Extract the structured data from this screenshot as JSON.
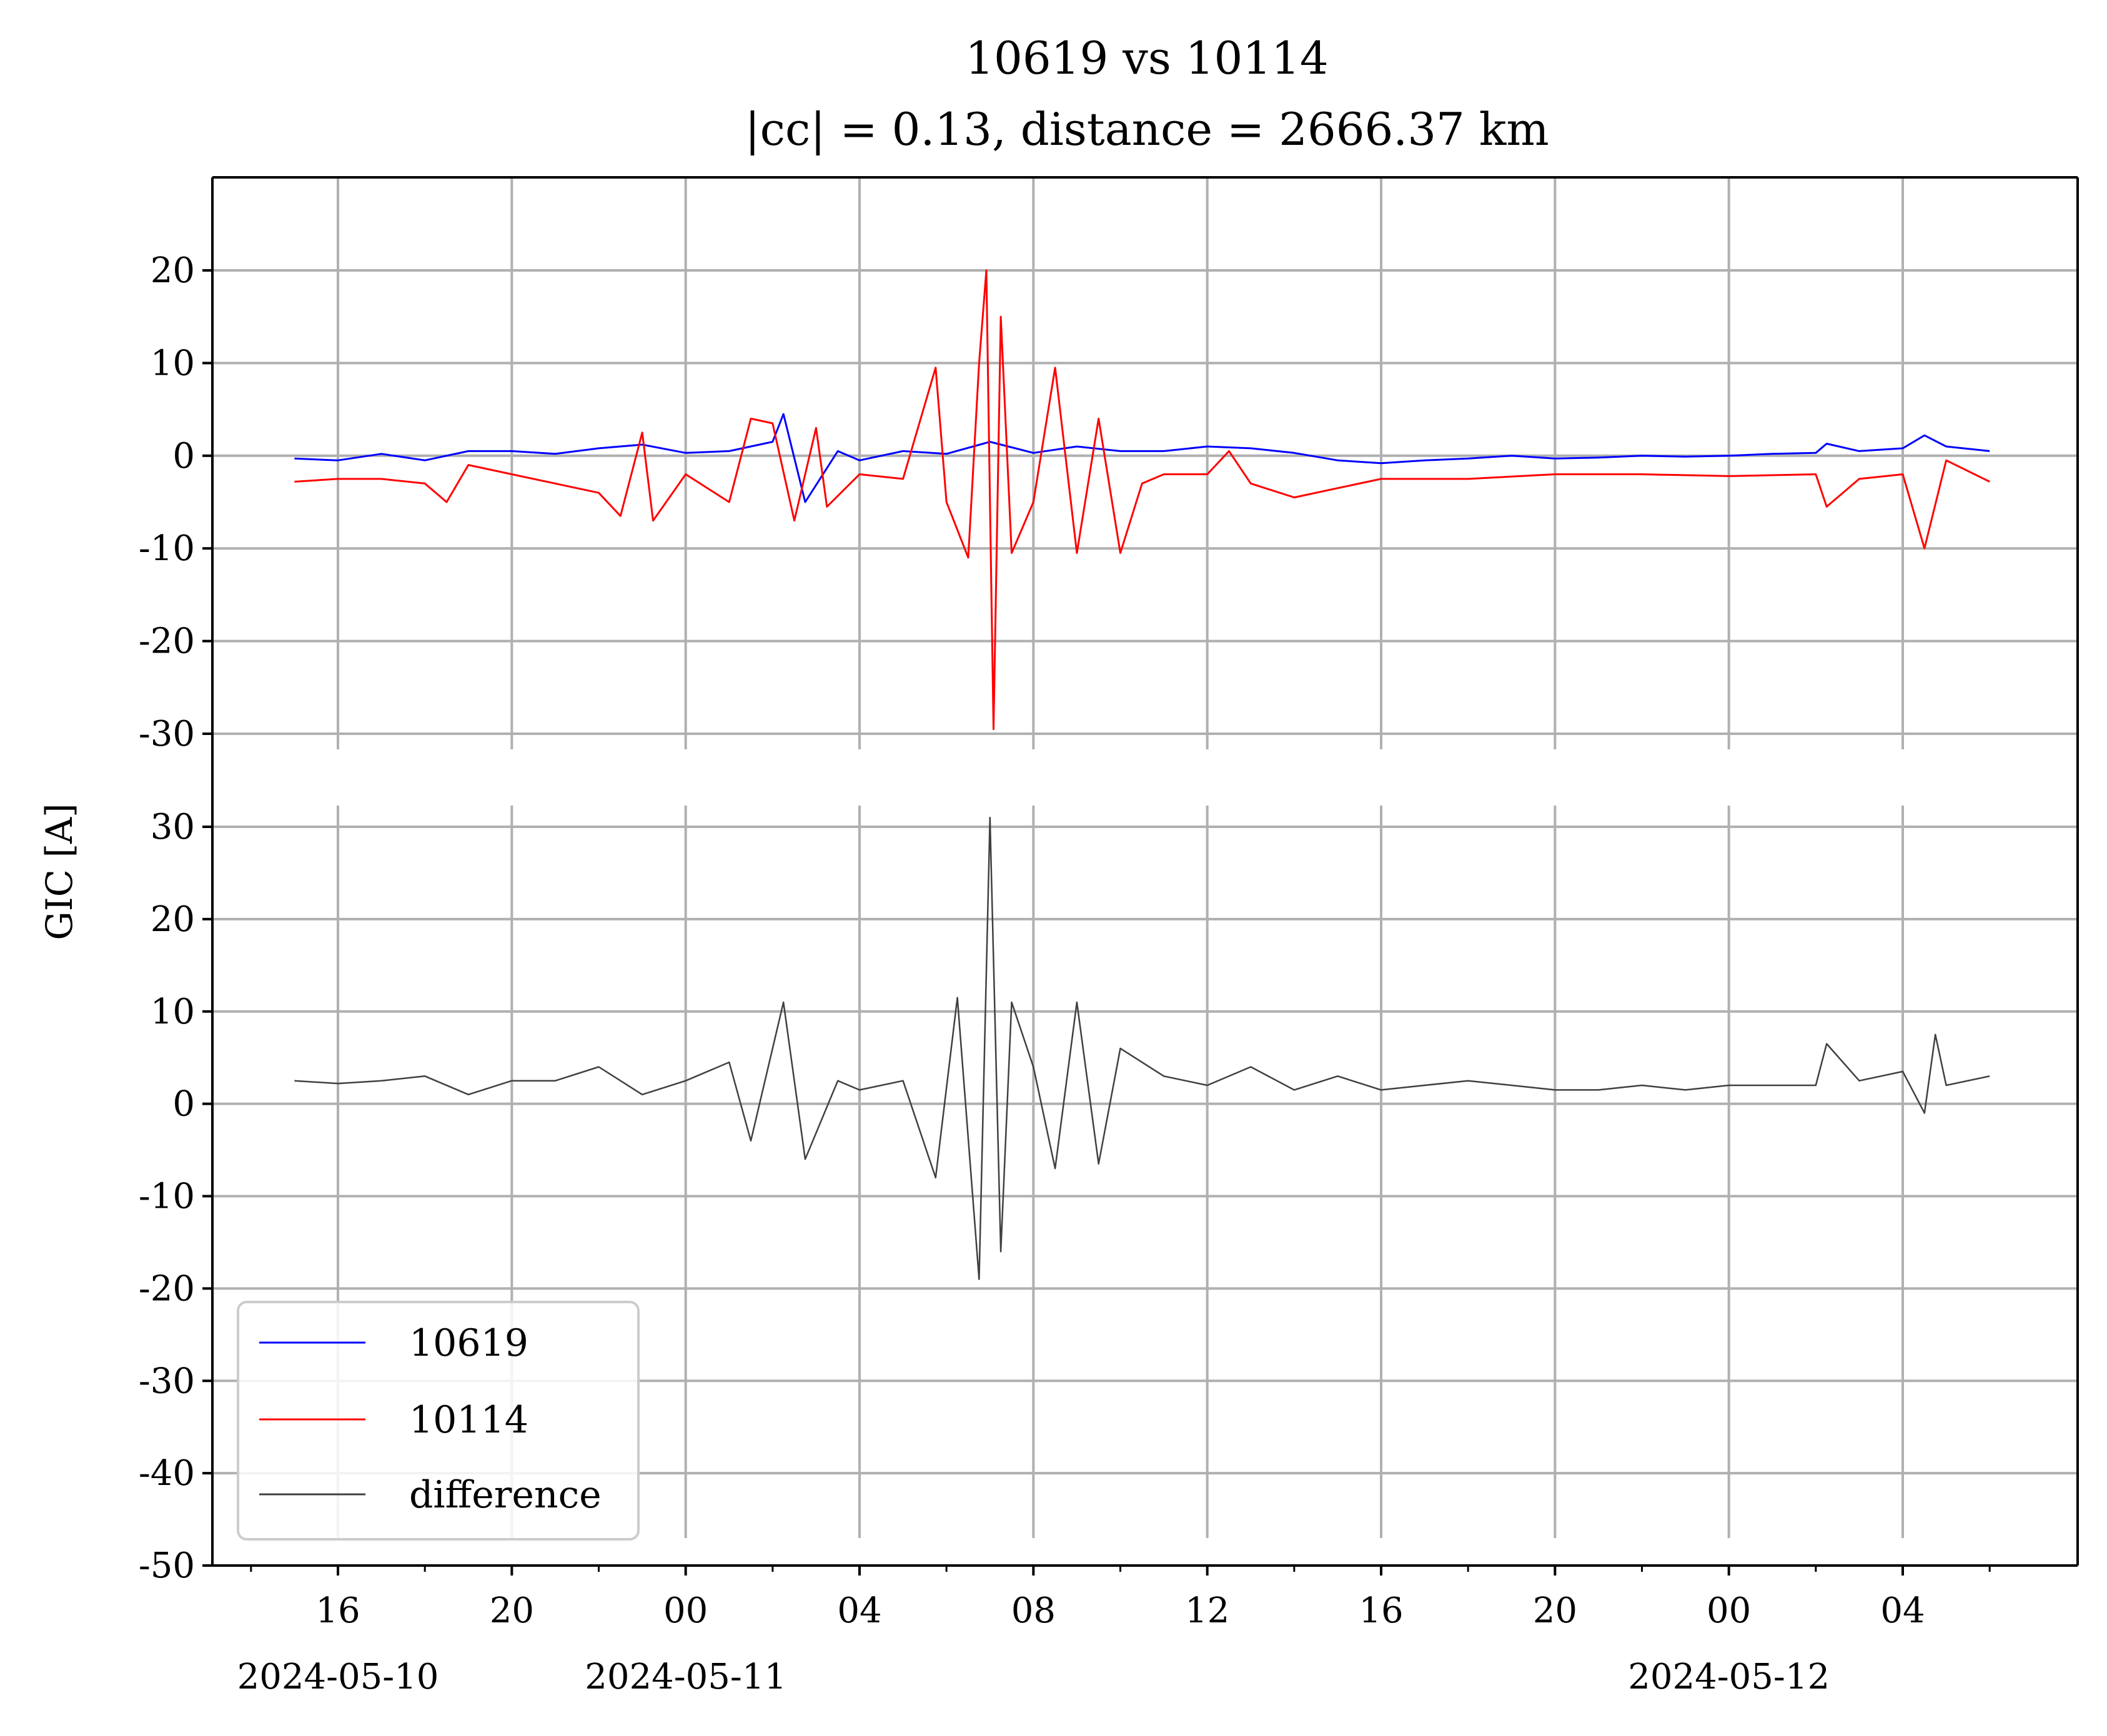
{
  "chart_data": {
    "type": "line",
    "title": "10619 vs 10114",
    "subtitle": "|cc| = 0.13, distance = 2666.37 km",
    "ylabel": "GIC [A]",
    "xlabel": "",
    "x_range": [
      "2024-05-10T13:00",
      "2024-05-12T06:30"
    ],
    "x_ticks": [
      {
        "time": "2024-05-10T16:00",
        "label": "16",
        "date_label": "2024-05-10"
      },
      {
        "time": "2024-05-10T20:00",
        "label": "20",
        "date_label": ""
      },
      {
        "time": "2024-05-11T00:00",
        "label": "00",
        "date_label": "2024-05-11"
      },
      {
        "time": "2024-05-11T04:00",
        "label": "04",
        "date_label": ""
      },
      {
        "time": "2024-05-11T08:00",
        "label": "08",
        "date_label": ""
      },
      {
        "time": "2024-05-11T12:00",
        "label": "12",
        "date_label": ""
      },
      {
        "time": "2024-05-11T16:00",
        "label": "16",
        "date_label": ""
      },
      {
        "time": "2024-05-11T20:00",
        "label": "20",
        "date_label": ""
      },
      {
        "time": "2024-05-12T00:00",
        "label": "00",
        "date_label": "2024-05-12"
      },
      {
        "time": "2024-05-12T04:00",
        "label": "04",
        "date_label": ""
      }
    ],
    "grid": true,
    "legend_position": "lower-left",
    "panels": [
      {
        "name": "top",
        "ylim": [
          -30,
          30
        ],
        "y_ticks": [
          20,
          10,
          0,
          -10,
          -20,
          -30
        ],
        "series": [
          {
            "name": "10619",
            "color": "#0000ff",
            "points": [
              [
                "2024-05-10T15:00",
                -0.3
              ],
              [
                "2024-05-10T16:00",
                -0.5
              ],
              [
                "2024-05-10T17:00",
                0.2
              ],
              [
                "2024-05-10T18:00",
                -0.5
              ],
              [
                "2024-05-10T19:00",
                0.5
              ],
              [
                "2024-05-10T20:00",
                0.5
              ],
              [
                "2024-05-10T21:00",
                0.2
              ],
              [
                "2024-05-10T22:00",
                0.8
              ],
              [
                "2024-05-10T23:00",
                1.2
              ],
              [
                "2024-05-11T00:00",
                0.3
              ],
              [
                "2024-05-11T01:00",
                0.5
              ],
              [
                "2024-05-11T02:00",
                1.5
              ],
              [
                "2024-05-11T02:15",
                4.5
              ],
              [
                "2024-05-11T02:45",
                -5.0
              ],
              [
                "2024-05-11T03:30",
                0.5
              ],
              [
                "2024-05-11T04:00",
                -0.5
              ],
              [
                "2024-05-11T05:00",
                0.5
              ],
              [
                "2024-05-11T06:00",
                0.2
              ],
              [
                "2024-05-11T07:00",
                1.5
              ],
              [
                "2024-05-11T08:00",
                0.3
              ],
              [
                "2024-05-11T09:00",
                1.0
              ],
              [
                "2024-05-11T10:00",
                0.5
              ],
              [
                "2024-05-11T11:00",
                0.5
              ],
              [
                "2024-05-11T12:00",
                1.0
              ],
              [
                "2024-05-11T13:00",
                0.8
              ],
              [
                "2024-05-11T14:00",
                0.3
              ],
              [
                "2024-05-11T15:00",
                -0.5
              ],
              [
                "2024-05-11T16:00",
                -0.8
              ],
              [
                "2024-05-11T17:00",
                -0.5
              ],
              [
                "2024-05-11T18:00",
                -0.3
              ],
              [
                "2024-05-11T19:00",
                0.0
              ],
              [
                "2024-05-11T20:00",
                -0.3
              ],
              [
                "2024-05-11T21:00",
                -0.2
              ],
              [
                "2024-05-11T22:00",
                0.0
              ],
              [
                "2024-05-11T23:00",
                -0.1
              ],
              [
                "2024-05-12T00:00",
                0.0
              ],
              [
                "2024-05-12T01:00",
                0.2
              ],
              [
                "2024-05-12T02:00",
                0.3
              ],
              [
                "2024-05-12T02:15",
                1.3
              ],
              [
                "2024-05-12T03:00",
                0.5
              ],
              [
                "2024-05-12T04:00",
                0.8
              ],
              [
                "2024-05-12T04:30",
                2.2
              ],
              [
                "2024-05-12T05:00",
                1.0
              ],
              [
                "2024-05-12T06:00",
                0.5
              ]
            ]
          },
          {
            "name": "10114",
            "color": "#ff0000",
            "points": [
              [
                "2024-05-10T15:00",
                -2.8
              ],
              [
                "2024-05-10T16:00",
                -2.5
              ],
              [
                "2024-05-10T17:00",
                -2.5
              ],
              [
                "2024-05-10T18:00",
                -3.0
              ],
              [
                "2024-05-10T18:30",
                -5.0
              ],
              [
                "2024-05-10T19:00",
                -1.0
              ],
              [
                "2024-05-10T20:00",
                -2.0
              ],
              [
                "2024-05-10T21:00",
                -3.0
              ],
              [
                "2024-05-10T22:00",
                -4.0
              ],
              [
                "2024-05-10T22:30",
                -6.5
              ],
              [
                "2024-05-10T23:00",
                2.5
              ],
              [
                "2024-05-10T23:15",
                -7.0
              ],
              [
                "2024-05-11T00:00",
                -2.0
              ],
              [
                "2024-05-11T01:00",
                -5.0
              ],
              [
                "2024-05-11T01:30",
                4.0
              ],
              [
                "2024-05-11T02:00",
                3.5
              ],
              [
                "2024-05-11T02:30",
                -7.0
              ],
              [
                "2024-05-11T03:00",
                3.0
              ],
              [
                "2024-05-11T03:15",
                -5.5
              ],
              [
                "2024-05-11T04:00",
                -2.0
              ],
              [
                "2024-05-11T05:00",
                -2.5
              ],
              [
                "2024-05-11T05:45",
                9.5
              ],
              [
                "2024-05-11T06:00",
                -5.0
              ],
              [
                "2024-05-11T06:30",
                -11.0
              ],
              [
                "2024-05-11T06:45",
                10.0
              ],
              [
                "2024-05-11T06:55",
                20.0
              ],
              [
                "2024-05-11T07:05",
                -29.5
              ],
              [
                "2024-05-11T07:15",
                15.0
              ],
              [
                "2024-05-11T07:30",
                -10.5
              ],
              [
                "2024-05-11T08:00",
                -5.0
              ],
              [
                "2024-05-11T08:30",
                9.5
              ],
              [
                "2024-05-11T09:00",
                -10.5
              ],
              [
                "2024-05-11T09:30",
                4.0
              ],
              [
                "2024-05-11T10:00",
                -10.5
              ],
              [
                "2024-05-11T10:30",
                -3.0
              ],
              [
                "2024-05-11T11:00",
                -2.0
              ],
              [
                "2024-05-11T12:00",
                -2.0
              ],
              [
                "2024-05-11T12:30",
                0.5
              ],
              [
                "2024-05-11T13:00",
                -3.0
              ],
              [
                "2024-05-11T14:00",
                -4.5
              ],
              [
                "2024-05-11T15:00",
                -3.5
              ],
              [
                "2024-05-11T16:00",
                -2.5
              ],
              [
                "2024-05-11T18:00",
                -2.5
              ],
              [
                "2024-05-11T20:00",
                -2.0
              ],
              [
                "2024-05-11T22:00",
                -2.0
              ],
              [
                "2024-05-12T00:00",
                -2.2
              ],
              [
                "2024-05-12T02:00",
                -2.0
              ],
              [
                "2024-05-12T02:15",
                -5.5
              ],
              [
                "2024-05-12T03:00",
                -2.5
              ],
              [
                "2024-05-12T04:00",
                -2.0
              ],
              [
                "2024-05-12T04:30",
                -10.0
              ],
              [
                "2024-05-12T05:00",
                -0.5
              ],
              [
                "2024-05-12T06:00",
                -2.8
              ]
            ]
          }
        ]
      },
      {
        "name": "bottom",
        "ylim": [
          -50,
          32
        ],
        "y_ticks": [
          30,
          20,
          10,
          0,
          -10,
          -20,
          -30,
          -40,
          -50
        ],
        "series": [
          {
            "name": "difference",
            "color": "#404040",
            "points": [
              [
                "2024-05-10T15:00",
                2.5
              ],
              [
                "2024-05-10T16:00",
                2.2
              ],
              [
                "2024-05-10T17:00",
                2.5
              ],
              [
                "2024-05-10T18:00",
                3.0
              ],
              [
                "2024-05-10T19:00",
                1.0
              ],
              [
                "2024-05-10T20:00",
                2.5
              ],
              [
                "2024-05-10T21:00",
                2.5
              ],
              [
                "2024-05-10T22:00",
                4.0
              ],
              [
                "2024-05-10T23:00",
                1.0
              ],
              [
                "2024-05-11T00:00",
                2.5
              ],
              [
                "2024-05-11T01:00",
                4.5
              ],
              [
                "2024-05-11T01:30",
                -4.0
              ],
              [
                "2024-05-11T02:15",
                11.0
              ],
              [
                "2024-05-11T02:45",
                -6.0
              ],
              [
                "2024-05-11T03:30",
                2.5
              ],
              [
                "2024-05-11T04:00",
                1.5
              ],
              [
                "2024-05-11T05:00",
                2.5
              ],
              [
                "2024-05-11T05:45",
                -8.0
              ],
              [
                "2024-05-11T06:15",
                11.5
              ],
              [
                "2024-05-11T06:45",
                -19.0
              ],
              [
                "2024-05-11T07:00",
                31.0
              ],
              [
                "2024-05-11T07:15",
                -16.0
              ],
              [
                "2024-05-11T07:30",
                11.0
              ],
              [
                "2024-05-11T08:00",
                4.0
              ],
              [
                "2024-05-11T08:30",
                -7.0
              ],
              [
                "2024-05-11T09:00",
                11.0
              ],
              [
                "2024-05-11T09:30",
                -6.5
              ],
              [
                "2024-05-11T10:00",
                6.0
              ],
              [
                "2024-05-11T11:00",
                3.0
              ],
              [
                "2024-05-11T12:00",
                2.0
              ],
              [
                "2024-05-11T13:00",
                4.0
              ],
              [
                "2024-05-11T14:00",
                1.5
              ],
              [
                "2024-05-11T15:00",
                3.0
              ],
              [
                "2024-05-11T16:00",
                1.5
              ],
              [
                "2024-05-11T17:00",
                2.0
              ],
              [
                "2024-05-11T18:00",
                2.5
              ],
              [
                "2024-05-11T19:00",
                2.0
              ],
              [
                "2024-05-11T20:00",
                1.5
              ],
              [
                "2024-05-11T21:00",
                1.5
              ],
              [
                "2024-05-11T22:00",
                2.0
              ],
              [
                "2024-05-11T23:00",
                1.5
              ],
              [
                "2024-05-12T00:00",
                2.0
              ],
              [
                "2024-05-12T01:00",
                2.0
              ],
              [
                "2024-05-12T02:00",
                2.0
              ],
              [
                "2024-05-12T02:15",
                6.5
              ],
              [
                "2024-05-12T03:00",
                2.5
              ],
              [
                "2024-05-12T04:00",
                3.5
              ],
              [
                "2024-05-12T04:30",
                -1.0
              ],
              [
                "2024-05-12T04:45",
                7.5
              ],
              [
                "2024-05-12T05:00",
                2.0
              ],
              [
                "2024-05-12T06:00",
                3.0
              ]
            ]
          }
        ]
      }
    ]
  }
}
